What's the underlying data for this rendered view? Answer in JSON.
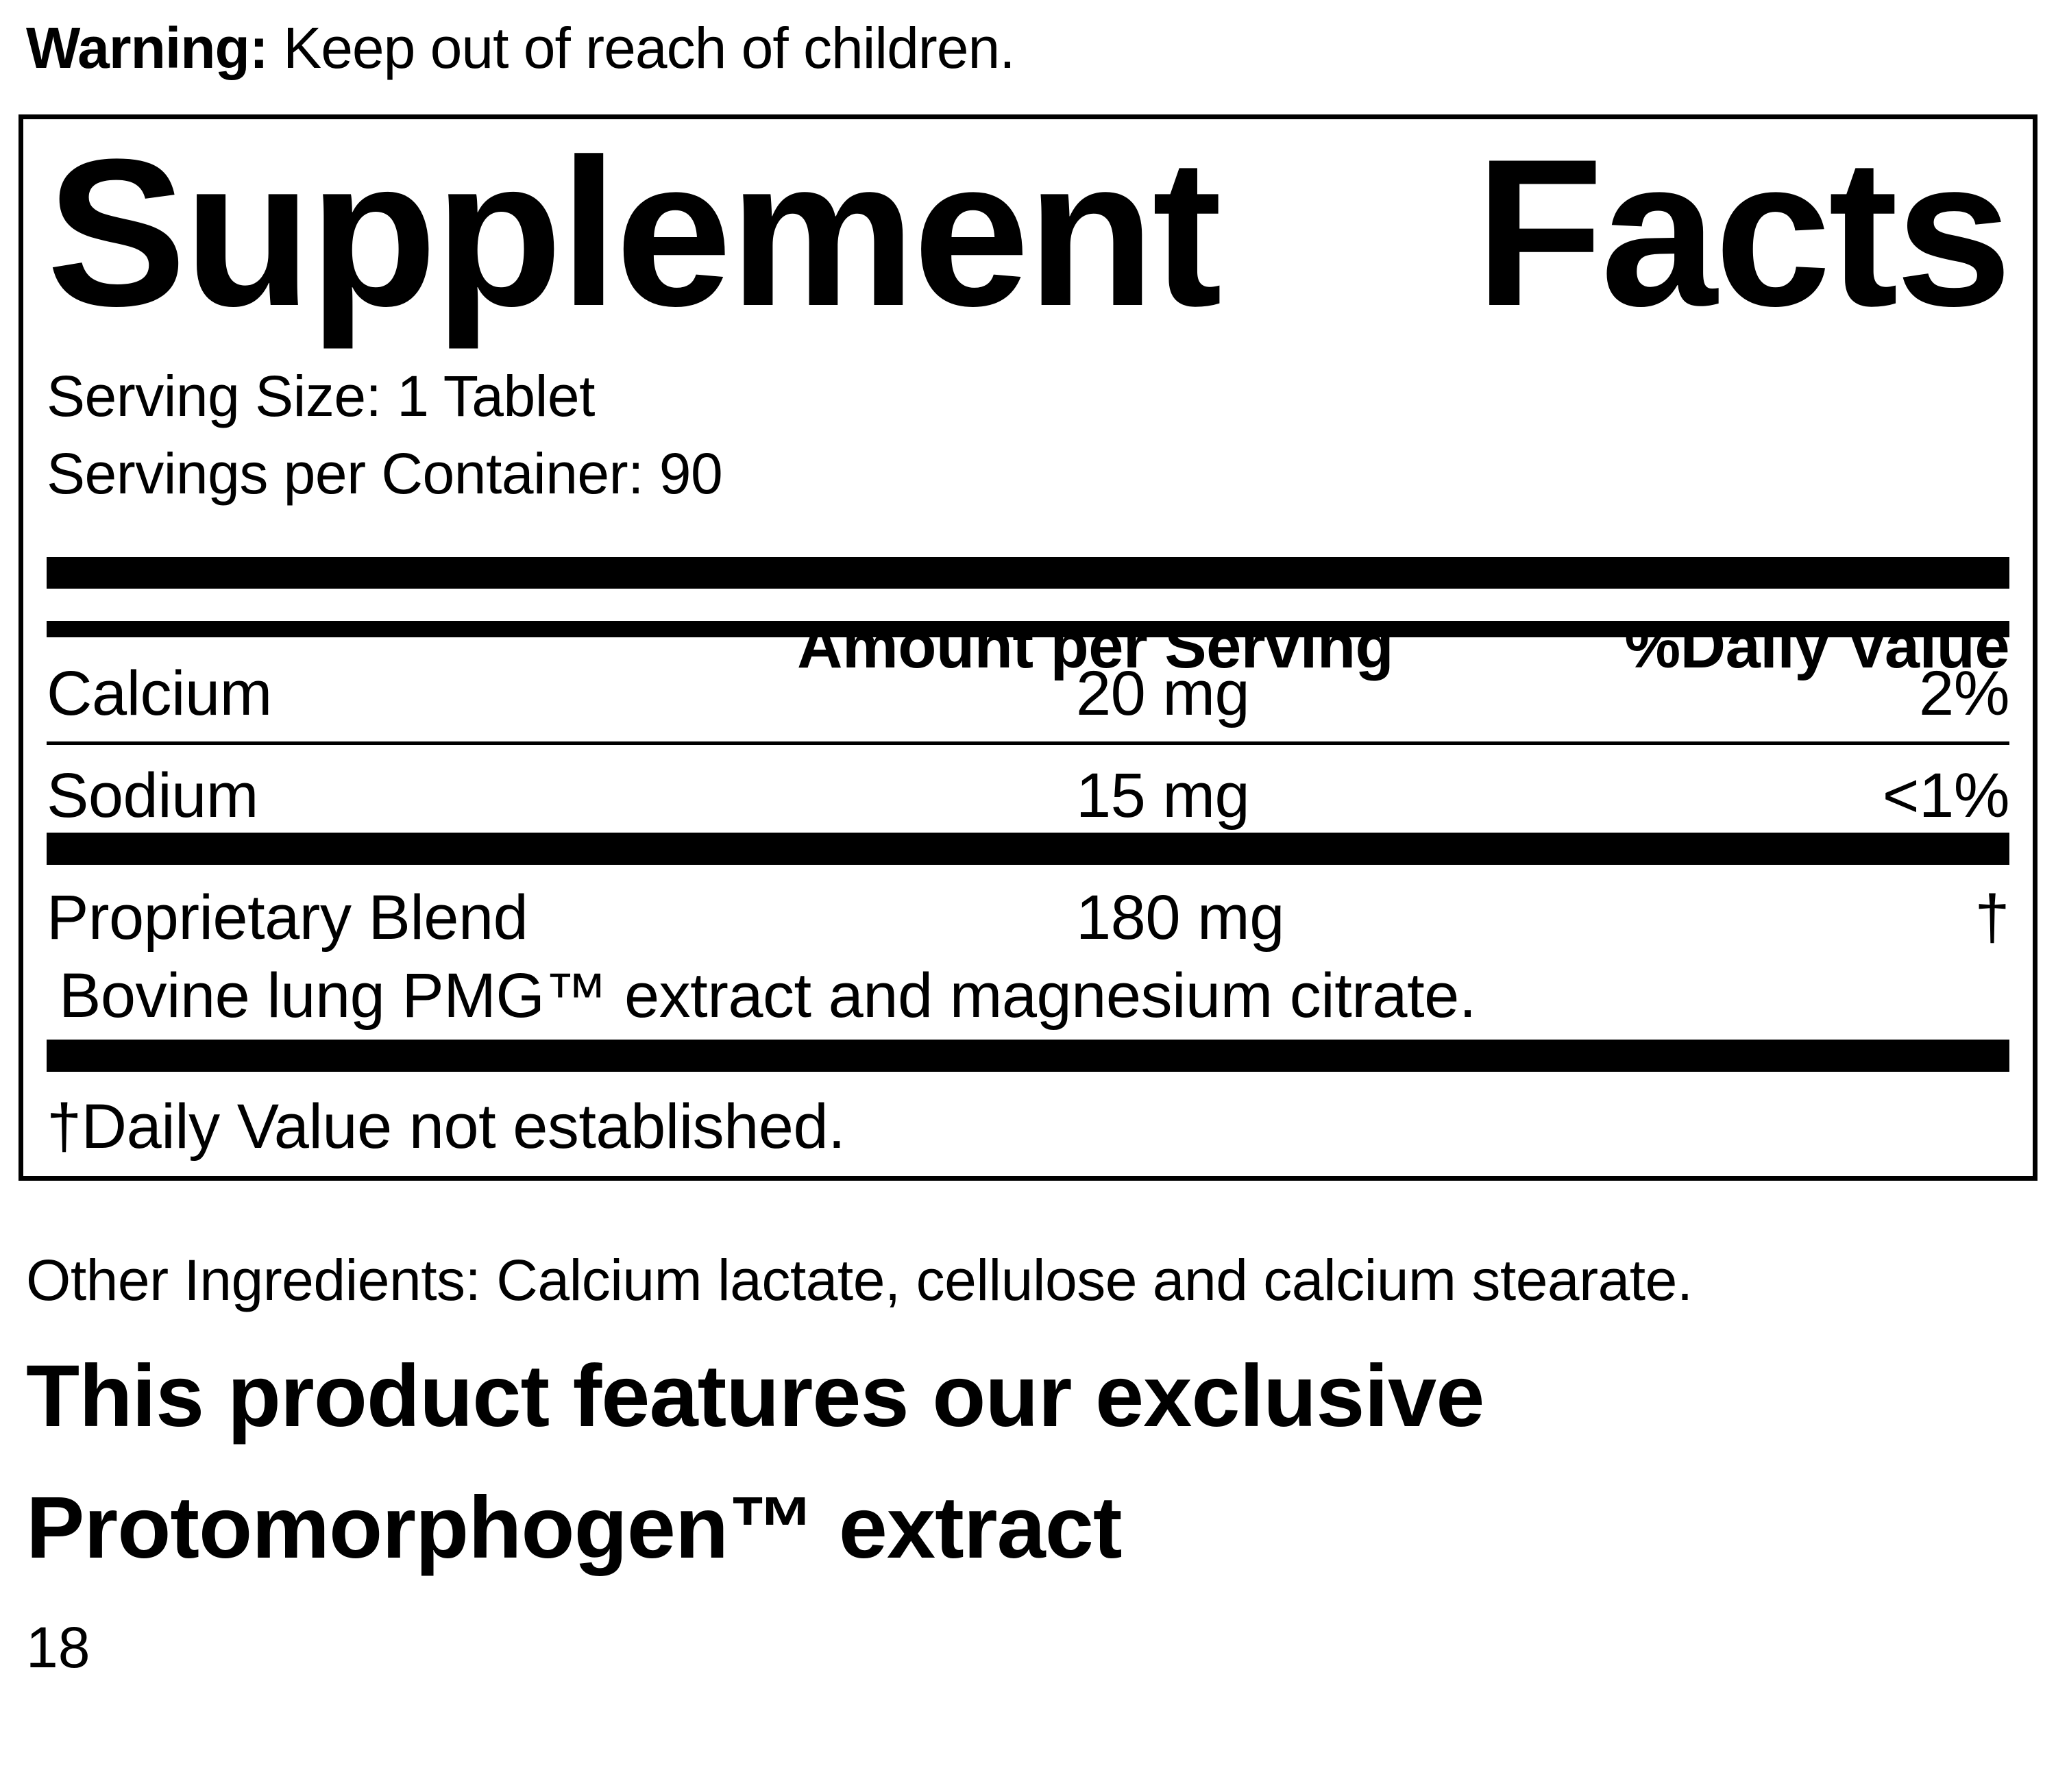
{
  "warning": {
    "label": "Warning:",
    "text": " Keep out of reach of children."
  },
  "panel": {
    "title_word1": "Supplement",
    "title_word2": "Facts",
    "serving_size": "Serving Size: 1 Tablet",
    "servings_per_container": "Servings per Container: 90",
    "header": {
      "amount": "Amount per Serving",
      "daily_value": "%Daily Value"
    },
    "rows": [
      {
        "name": "Calcium",
        "amount": "20 mg",
        "dv": "2%"
      },
      {
        "name": "Sodium",
        "amount": "15 mg",
        "dv": "<1%"
      },
      {
        "name": "Proprietary Blend",
        "amount": "180 mg",
        "dv": "†",
        "description": "Bovine lung PMG™ extract and magnesium citrate."
      }
    ],
    "footnote": "†Daily Value not established."
  },
  "other_ingredients": "Other Ingredients: Calcium lactate, cellulose and calcium stearate.",
  "feature_note": {
    "line1": "This product features our exclusive",
    "line2": "Protomorphogen™ extract"
  },
  "page_number": "18",
  "colors": {
    "ink": "#000000",
    "paper": "#ffffff"
  }
}
